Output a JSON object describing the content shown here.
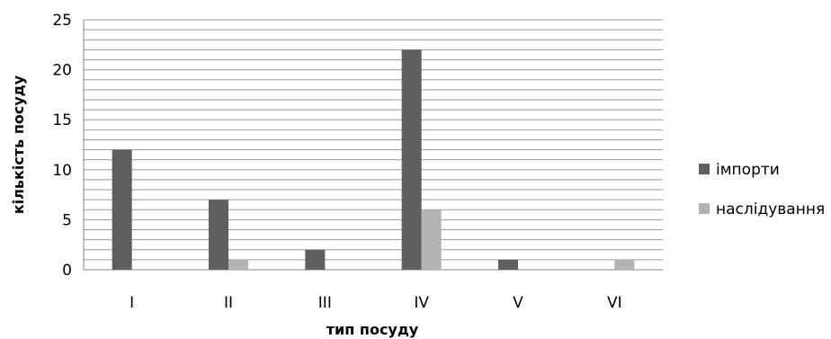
{
  "chart_data": {
    "type": "bar",
    "categories": [
      "I",
      "II",
      "III",
      "IV",
      "V",
      "VI"
    ],
    "series": [
      {
        "name": "імпорти",
        "values": [
          12,
          7,
          2,
          22,
          1,
          0
        ],
        "color": "#5f5f5f"
      },
      {
        "name": "наслідування",
        "values": [
          0,
          1,
          0,
          6,
          0,
          1
        ],
        "color": "#b3b3b3"
      }
    ],
    "yticks": [
      0,
      5,
      10,
      15,
      20,
      25
    ],
    "ylim": [
      0,
      25
    ],
    "xlabel": "тип посуду",
    "ylabel": "кількість посуду",
    "grid": true,
    "legend_position": "right"
  }
}
